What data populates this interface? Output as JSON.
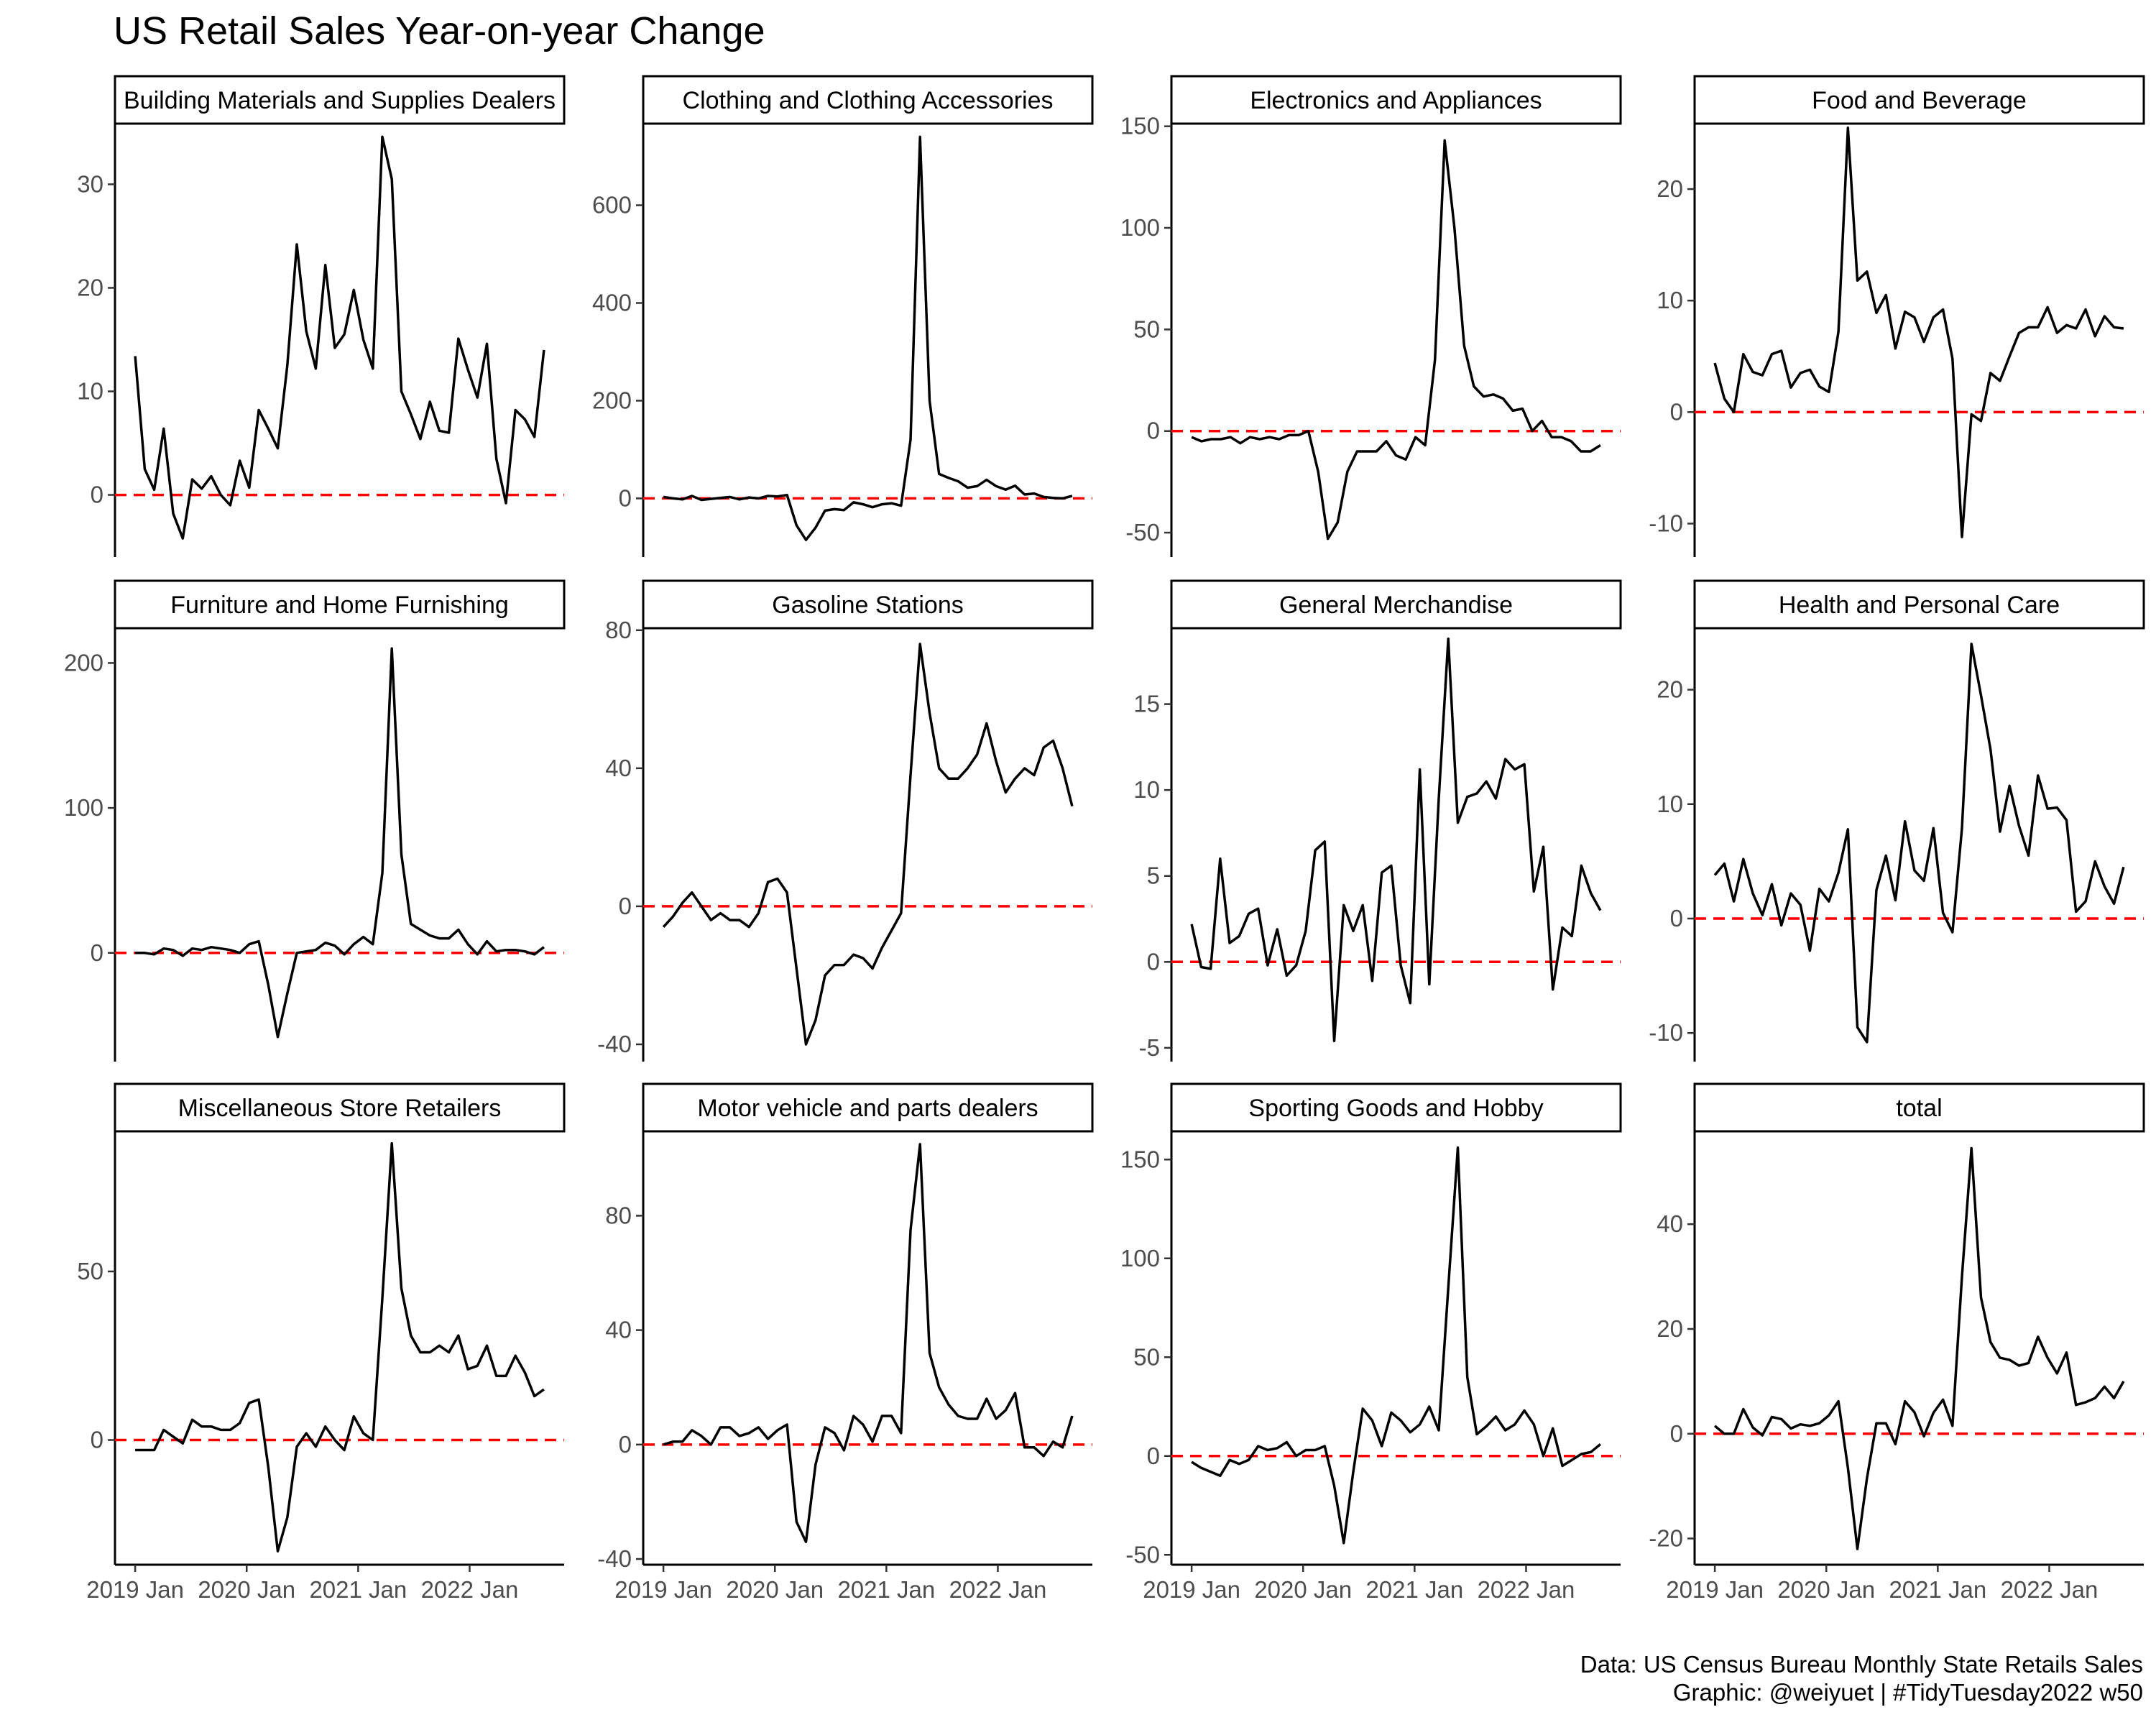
{
  "title": "US Retail Sales Year-on-year Change",
  "caption": {
    "line1": "Data: US Census Bureau Monthly State Retails Sales",
    "line2": "Graphic: @weiyuet | #TidyTuesday2022 w50"
  },
  "colors": {
    "line": "#000000",
    "zero_line": "#ff0000",
    "axis": "#000000",
    "tick_text": "#4d4d4d",
    "background": "#ffffff"
  },
  "chart_data": {
    "type": "line",
    "layout": "facet grid 3 rows x 4 columns, free y scales",
    "x_ticks": [
      "2019 Jan",
      "2020 Jan",
      "2021 Jan",
      "2022 Jan"
    ],
    "x_start": "2019-01",
    "x_end": "2022-09",
    "reference_line": {
      "y": 0,
      "style": "dashed red"
    },
    "facets": [
      {
        "name": "Building Materials and Supplies Dealers",
        "ylim": [
          -6,
          36
        ],
        "yticks": [
          0,
          10,
          20,
          30
        ],
        "values": [
          13.4,
          2.5,
          0.5,
          6.4,
          -1.8,
          -4.2,
          1.5,
          0.6,
          1.8,
          0,
          -1,
          3.3,
          0.7,
          8.2,
          6.4,
          4.5,
          12.5,
          24.2,
          15.8,
          12.2,
          22.2,
          14.2,
          15.5,
          19.8,
          15,
          12.2,
          34.6,
          30.5,
          10,
          7.8,
          5.4,
          9,
          6.2,
          6,
          15.1,
          12.1,
          9.4,
          14.6,
          3.5,
          -0.8,
          8.2,
          7.3,
          5.6,
          14
        ]
      },
      {
        "name": "Clothing and Clothing Accessories",
        "ylim": [
          -120,
          770
        ],
        "yticks": [
          0,
          200,
          400,
          600
        ],
        "values": [
          3,
          0,
          -2,
          5,
          -3,
          -1,
          1,
          3,
          -2,
          2,
          0,
          5,
          4,
          7,
          -55,
          -85,
          -60,
          -25,
          -22,
          -24,
          -8,
          -12,
          -18,
          -12,
          -10,
          -15,
          120,
          740,
          200,
          50,
          42,
          35,
          22,
          25,
          38,
          25,
          18,
          26,
          8,
          10,
          3,
          1,
          0,
          5
        ]
      },
      {
        "name": "Electronics and Appliances",
        "ylim": [
          -62,
          152
        ],
        "yticks": [
          -50,
          0,
          50,
          100,
          150
        ],
        "values": [
          -3,
          -5,
          -4,
          -4,
          -3,
          -6,
          -3,
          -4,
          -3,
          -4,
          -2,
          -2,
          0,
          -20,
          -53,
          -45,
          -20,
          -10,
          -10,
          -10,
          -5,
          -12,
          -14,
          -3,
          -7,
          35,
          143,
          100,
          42,
          22,
          17,
          18,
          16,
          10,
          11,
          0,
          5,
          -3,
          -3,
          -5,
          -10,
          -10,
          -7
        ]
      },
      {
        "name": "Food and Beverage",
        "ylim": [
          -13,
          26
        ],
        "yticks": [
          -10,
          0,
          10,
          20
        ],
        "values": [
          4.4,
          1.2,
          0,
          5.2,
          3.6,
          3.3,
          5.2,
          5.5,
          2.2,
          3.5,
          3.8,
          2.3,
          1.8,
          7.2,
          25.5,
          11.8,
          12.6,
          8.9,
          10.5,
          5.7,
          9,
          8.5,
          6.3,
          8.5,
          9.2,
          4.8,
          -11.2,
          -0.2,
          -0.8,
          3.5,
          2.8,
          5,
          7.1,
          7.6,
          7.6,
          9.4,
          7.1,
          7.8,
          7.5,
          9.2,
          6.8,
          8.6,
          7.6,
          7.5
        ]
      },
      {
        "name": "Furniture and Home Furnishing",
        "ylim": [
          -75,
          225
        ],
        "yticks": [
          0,
          100,
          200
        ],
        "values": [
          0,
          0,
          -1,
          3,
          2,
          -2,
          3,
          2,
          4,
          3,
          2,
          0,
          6,
          8,
          -22,
          -58,
          -28,
          0,
          1,
          2,
          7,
          5,
          -1,
          6,
          11,
          6,
          55,
          210,
          68,
          20,
          16,
          12,
          10,
          10,
          16,
          6,
          -1,
          8,
          1,
          2,
          2,
          1,
          -1,
          4
        ]
      },
      {
        "name": "Gasoline Stations",
        "ylim": [
          -45,
          81
        ],
        "yticks": [
          -40,
          0,
          40,
          80
        ],
        "values": [
          -6,
          -3,
          1,
          4,
          0,
          -4,
          -2,
          -4,
          -4,
          -6,
          -2,
          7,
          8,
          4,
          -18,
          -40,
          -33,
          -20,
          -17,
          -17,
          -14,
          -15,
          -18,
          -12,
          -7,
          -2,
          38,
          76,
          56,
          40,
          37,
          37,
          40,
          44,
          53,
          42,
          33,
          37,
          40,
          38,
          46,
          48,
          40,
          29
        ]
      },
      {
        "name": "General Merchandise",
        "ylim": [
          -5.8,
          19.5
        ],
        "yticks": [
          -5,
          0,
          5,
          10,
          15
        ],
        "values": [
          2.2,
          -0.3,
          -0.4,
          6,
          1.1,
          1.5,
          2.8,
          3.1,
          -0.2,
          1.9,
          -0.8,
          -0.2,
          1.8,
          6.5,
          7,
          -4.6,
          3.3,
          1.8,
          3.3,
          -1.1,
          5.2,
          5.6,
          -0.2,
          -2.4,
          11.2,
          -1.3,
          9.5,
          18.8,
          8.1,
          9.6,
          9.8,
          10.5,
          9.5,
          11.8,
          11.2,
          11.5,
          4.1,
          6.7,
          -1.6,
          2,
          1.5,
          5.6,
          4,
          3
        ]
      },
      {
        "name": "Health and Personal Care",
        "ylim": [
          -12.5,
          25.5
        ],
        "yticks": [
          -10,
          0,
          10,
          20
        ],
        "values": [
          3.8,
          4.8,
          1.5,
          5.2,
          2.2,
          0.3,
          3,
          -0.6,
          2.2,
          1.2,
          -2.8,
          2.6,
          1.5,
          4,
          7.8,
          -9.5,
          -10.8,
          2.5,
          5.5,
          1.6,
          8.5,
          4.2,
          3.3,
          7.9,
          0.5,
          -1.2,
          7.9,
          24,
          19.5,
          14.8,
          7.6,
          11.6,
          8.1,
          5.5,
          12.5,
          9.6,
          9.7,
          8.6,
          0.6,
          1.5,
          5,
          2.8,
          1.3,
          4.5
        ]
      },
      {
        "name": "Miscellaneous Store Retailers",
        "ylim": [
          -37,
          92
        ],
        "yticks": [
          0,
          50
        ],
        "values": [
          -3,
          -3,
          -3,
          3,
          1,
          -1,
          6,
          4,
          4,
          3,
          3,
          5,
          11,
          12,
          -8,
          -33,
          -23,
          -2,
          2,
          -2,
          4,
          0,
          -3,
          7,
          2,
          0,
          42,
          88,
          45,
          31,
          26,
          26,
          28,
          26,
          31,
          21,
          22,
          28,
          19,
          19,
          25,
          20,
          13,
          15
        ]
      },
      {
        "name": "Motor vehicle and parts dealers",
        "ylim": [
          -42,
          110
        ],
        "yticks": [
          -40,
          0,
          40,
          80
        ],
        "values": [
          0,
          1,
          1,
          5,
          3,
          0,
          6,
          6,
          3,
          4,
          6,
          2,
          5,
          7,
          -27,
          -34,
          -7,
          6,
          4,
          -2,
          10,
          7,
          1,
          10,
          10,
          4,
          75,
          105,
          32,
          20,
          14,
          10,
          9,
          9,
          16,
          9,
          12,
          18,
          -1,
          -1,
          -4,
          1,
          -1,
          10
        ]
      },
      {
        "name": "Sporting Goods and Hobby",
        "ylim": [
          -55,
          165
        ],
        "yticks": [
          -50,
          0,
          50,
          100,
          150
        ],
        "values": [
          -3,
          -6,
          -8,
          -10,
          -2,
          -4,
          -2,
          5,
          3,
          4,
          7,
          0,
          3,
          3,
          5,
          -15,
          -44,
          -8,
          24,
          18,
          5,
          22,
          18,
          12,
          16,
          25,
          13,
          85,
          156,
          40,
          11,
          15,
          20,
          13,
          16,
          23,
          16,
          0,
          14,
          -5,
          -2,
          1,
          2,
          6
        ]
      },
      {
        "name": "total",
        "ylim": [
          -25,
          58
        ],
        "yticks": [
          -20,
          0,
          20,
          40
        ],
        "values": [
          1.5,
          0,
          0,
          4.7,
          1.2,
          -0.3,
          3.2,
          2.8,
          1,
          1.8,
          1.5,
          2,
          3.5,
          6.2,
          -6.5,
          -22,
          -8.5,
          2,
          2,
          -2,
          6.2,
          4.1,
          -0.5,
          4,
          6.5,
          1.5,
          30,
          54.5,
          26,
          17.5,
          14.5,
          14.1,
          13,
          13.5,
          18.5,
          14.5,
          11.5,
          15.5,
          5.5,
          6,
          6.8,
          9,
          6.8,
          10
        ]
      }
    ]
  }
}
